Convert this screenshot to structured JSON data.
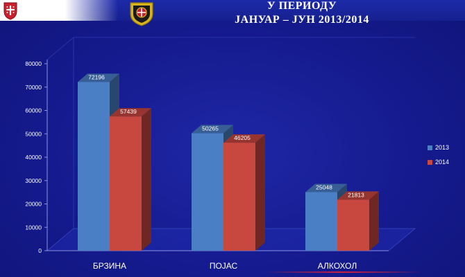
{
  "header": {
    "title_line1": "У ПЕРИОДУ",
    "title_line2": "ЈАНУАР – ЈУН 2013/2014"
  },
  "chart_data": {
    "type": "bar",
    "title": "",
    "xlabel": "",
    "ylabel": "",
    "ylim": [
      0,
      80000
    ],
    "y_ticks": [
      0,
      10000,
      20000,
      30000,
      40000,
      50000,
      60000,
      70000,
      80000
    ],
    "categories": [
      "БРЗИНА",
      "ПОЈАС",
      "АЛКОХОЛ"
    ],
    "series": [
      {
        "name": "2013",
        "values": [
          72196,
          50265,
          25048
        ],
        "color": "#4a7fc6"
      },
      {
        "name": "2014",
        "values": [
          57439,
          46205,
          21813
        ],
        "color": "#c8473f"
      }
    ],
    "legend_position": "right",
    "grid": false,
    "style": "3d-column"
  },
  "colors": {
    "background": "#151b8e",
    "text": "#ffffff",
    "accent_line": "#d0203c"
  }
}
